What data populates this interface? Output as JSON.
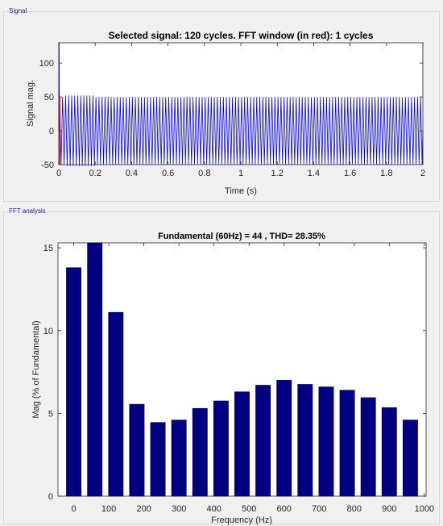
{
  "signal_panel": {
    "label": "Signal",
    "chart_data": {
      "type": "line",
      "title": "Selected signal: 120 cycles. FFT window (in red): 1 cycles",
      "xlabel": "Time (s)",
      "ylabel": "Signal mag.",
      "xlim": [
        0,
        2
      ],
      "ylim": [
        -50,
        130
      ],
      "xticks": [
        "0",
        "0.2",
        "0.4",
        "0.6",
        "0.8",
        "1",
        "1.2",
        "1.4",
        "1.6",
        "1.8",
        "2"
      ],
      "yticks": [
        "-50",
        "0",
        "50",
        "100"
      ],
      "cycles": 120,
      "amplitude": 50,
      "initial_peak": 130,
      "initial_trough": -50,
      "fft_window_cycles": 1,
      "series_color": "#0000ff",
      "window_color": "#ff0000"
    }
  },
  "fft_panel": {
    "label": "FFT analysis",
    "chart_data": {
      "type": "bar",
      "title": "Fundamental (60Hz) = 44 , THD= 28.35%",
      "xlabel": "Frequency (Hz)",
      "ylabel": "Mag (% of Fundamental)",
      "x": [
        0,
        60,
        120,
        180,
        240,
        300,
        360,
        420,
        480,
        540,
        600,
        660,
        720,
        780,
        840,
        900,
        960
      ],
      "values": [
        13.8,
        15.3,
        11.1,
        5.55,
        4.45,
        4.6,
        5.3,
        5.75,
        6.3,
        6.7,
        7.0,
        6.75,
        6.6,
        6.4,
        5.95,
        5.35,
        4.6
      ],
      "xlim": [
        -45,
        1005
      ],
      "ylim": [
        0,
        15.3
      ],
      "xticks": [
        "0",
        "100",
        "200",
        "300",
        "400",
        "500",
        "600",
        "700",
        "800",
        "900",
        "1000"
      ],
      "yticks": [
        "0",
        "5",
        "10",
        "15"
      ],
      "bar_color": "#000080"
    }
  }
}
